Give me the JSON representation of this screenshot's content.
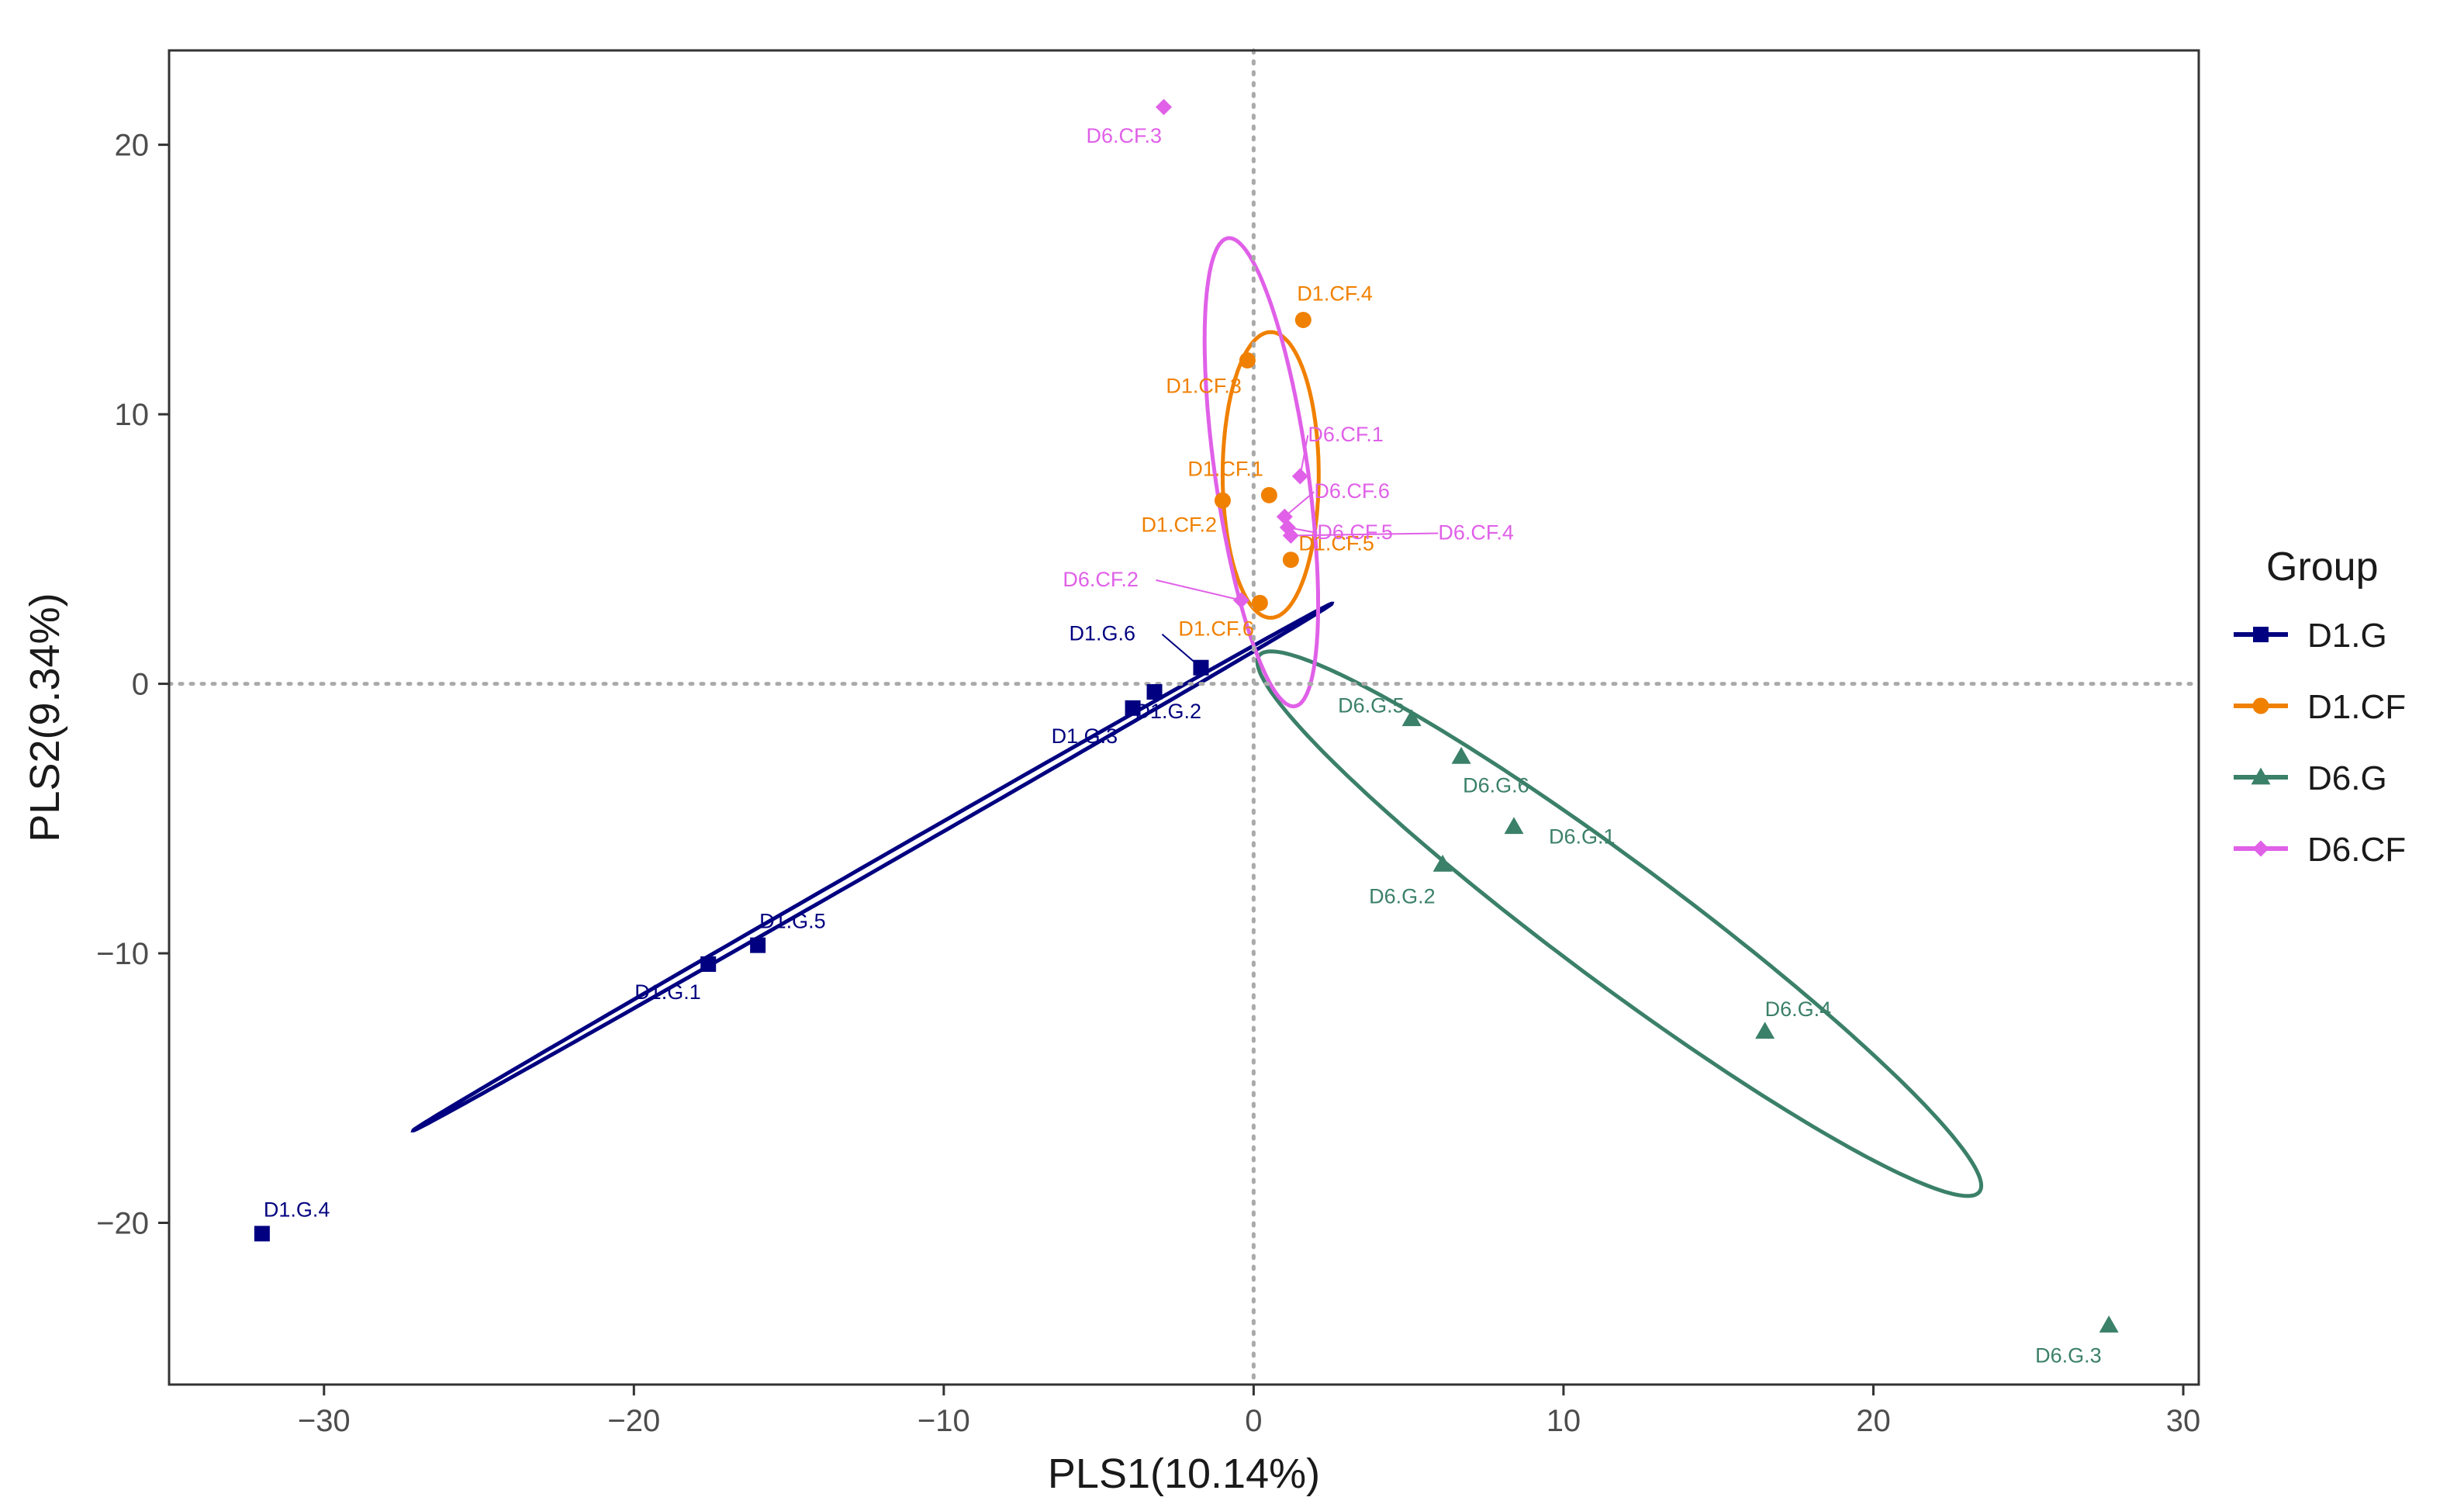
{
  "chart_data": {
    "type": "scatter",
    "title": "",
    "xlabel": "PLS1(10.14%)",
    "ylabel": "PLS2(9.34%)",
    "xlim": [
      -35,
      30.5
    ],
    "ylim": [
      -26,
      23.5
    ],
    "xticks": [
      -30,
      -20,
      -10,
      0,
      10,
      20,
      30
    ],
    "yticks": [
      -20,
      -10,
      0,
      10,
      20
    ],
    "xtick_labels": [
      "−30",
      "−20",
      "−10",
      "0",
      "10",
      "20",
      "30"
    ],
    "ytick_labels": [
      "−20",
      "−10",
      "0",
      "10",
      "20"
    ],
    "reference_lines": {
      "x": 0,
      "y": 0,
      "style": "dotted"
    },
    "grid": false,
    "legend": {
      "title": "Group",
      "position": "right"
    },
    "series": [
      {
        "name": "D1.G",
        "color": "#000080",
        "marker": "square",
        "points": [
          {
            "label": "D1.G.1",
            "x": -17.6,
            "y": -10.4
          },
          {
            "label": "D1.G.2",
            "x": -3.2,
            "y": -0.3
          },
          {
            "label": "D1.G.3",
            "x": -3.9,
            "y": -0.9
          },
          {
            "label": "D1.G.4",
            "x": -32.0,
            "y": -20.4
          },
          {
            "label": "D1.G.5",
            "x": -16.0,
            "y": -9.7
          },
          {
            "label": "D1.G.6",
            "x": -1.7,
            "y": 0.6
          }
        ],
        "ellipse": {
          "cx": -12.3,
          "cy": -6.8,
          "rx": 17.75,
          "ry": 0.16,
          "angle_deg": 33.4
        }
      },
      {
        "name": "D1.CF",
        "color": "#F08000",
        "marker": "circle",
        "points": [
          {
            "label": "D1.CF.1",
            "x": 0.5,
            "y": 7.0
          },
          {
            "label": "D1.CF.2",
            "x": -1.0,
            "y": 6.8
          },
          {
            "label": "D1.CF.3",
            "x": -0.2,
            "y": 12.0
          },
          {
            "label": "D1.CF.4",
            "x": 1.6,
            "y": 13.5
          },
          {
            "label": "D1.CF.5",
            "x": 1.2,
            "y": 4.6
          },
          {
            "label": "D1.CF.6",
            "x": 0.2,
            "y": 3.0
          }
        ],
        "ellipse": {
          "cx": 0.55,
          "cy": 7.75,
          "rx": 1.55,
          "ry": 5.3,
          "angle_deg": 0
        }
      },
      {
        "name": "D6.G",
        "color": "#3B8069",
        "marker": "triangle",
        "points": [
          {
            "label": "D6.G.1",
            "x": 8.4,
            "y": -5.3
          },
          {
            "label": "D6.G.2",
            "x": 6.1,
            "y": -6.7
          },
          {
            "label": "D6.G.3",
            "x": 27.6,
            "y": -23.8
          },
          {
            "label": "D6.G.4",
            "x": 16.5,
            "y": -12.9
          },
          {
            "label": "D6.G.5",
            "x": 5.1,
            "y": -1.3
          },
          {
            "label": "D6.G.6",
            "x": 6.7,
            "y": -2.7
          }
        ],
        "ellipse": {
          "cx": 11.8,
          "cy": -8.9,
          "rx": 15.3,
          "ry": 2.1,
          "angle_deg": -40.7
        }
      },
      {
        "name": "D6.CF",
        "color": "#E060E8",
        "marker": "diamond",
        "points": [
          {
            "label": "D6.CF.1",
            "x": 1.5,
            "y": 7.7
          },
          {
            "label": "D6.CF.2",
            "x": -0.4,
            "y": 3.1
          },
          {
            "label": "D6.CF.3",
            "x": -2.9,
            "y": 21.4
          },
          {
            "label": "D6.CF.4",
            "x": 1.2,
            "y": 5.5
          },
          {
            "label": "D6.CF.5",
            "x": 1.1,
            "y": 5.8
          },
          {
            "label": "D6.CF.6",
            "x": 1.0,
            "y": 6.2
          }
        ],
        "ellipse": {
          "cx": 0.25,
          "cy": 7.85,
          "rx": 1.5,
          "ry": 8.75,
          "angle_deg": 7
        }
      }
    ]
  }
}
